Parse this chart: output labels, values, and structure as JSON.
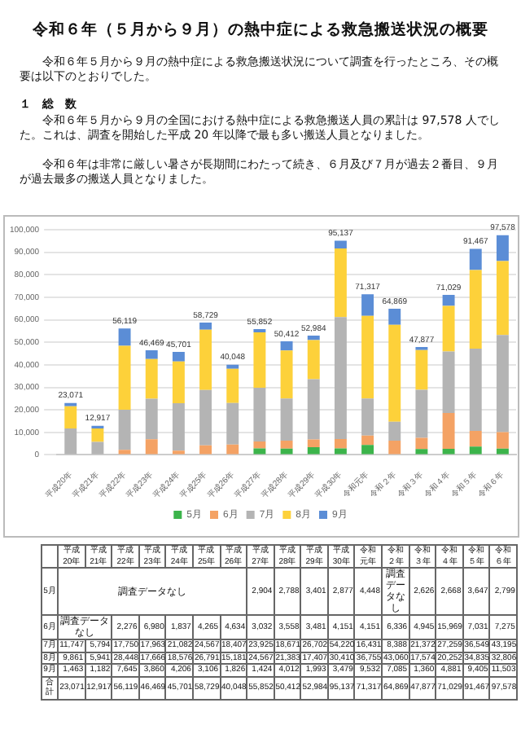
{
  "chart_data": {
    "type": "bar",
    "title": "令和６年（５月から９月）の熱中症による救急搬送状況の概要",
    "annotations": [
      "令和６年５月から９月の熱中症による救急搬送状況について調査を行ったところ、その概要は以下のとおりでした。",
      "１　総　数",
      "令和６年５月から９月の全国における熱中症による救急搬送人員の累計は 97,578 人でした。これは、調査を開始した平成 20 年以降で最も多い搬送人員となりました。",
      "令和６年は非常に厳しい暑さが長期間にわたって続き、６月及び７月が過去２番目、９月が過去最多の搬送人員となりました。",
      "調査データなし",
      "合計"
    ],
    "categories": [
      "平成20年",
      "平成21年",
      "平成22年",
      "平成23年",
      "平成24年",
      "平成25年",
      "平成26年",
      "平成27年",
      "平成28年",
      "平成29年",
      "平成30年",
      "令和元年",
      "令和２年",
      "令和３年",
      "令和４年",
      "令和５年",
      "令和６年"
    ],
    "stacked": true,
    "series": [
      {
        "name": "5月",
        "color": "#3cb44b",
        "values": [
          null,
          null,
          null,
          null,
          null,
          null,
          null,
          2904,
          2788,
          3401,
          2877,
          4448,
          null,
          2626,
          2668,
          3647,
          2799
        ],
        "value_labels": [
          null,
          null,
          null,
          null,
          null,
          null,
          null,
          "2,904",
          "2,788",
          "3,401",
          "2,877",
          "4,448",
          null,
          "2,626",
          "2,668",
          "3,647",
          "2,799"
        ]
      },
      {
        "name": "6月",
        "color": "#f4a264",
        "values": [
          null,
          null,
          2276,
          6980,
          1837,
          4265,
          4634,
          3032,
          3558,
          3481,
          4151,
          4151,
          6336,
          4945,
          15969,
          7031,
          7275
        ],
        "value_labels": [
          null,
          null,
          "2,276",
          "6,980",
          "1,837",
          "4,265",
          "4,634",
          "3,032",
          "3,558",
          "3,481",
          "4,151",
          "4,151",
          "6,336",
          "4,945",
          "15,969",
          "7,031",
          "7,275"
        ]
      },
      {
        "name": "7月",
        "color": "#b4b4b4",
        "values": [
          11747,
          5794,
          17750,
          17963,
          21082,
          24567,
          18407,
          23925,
          18671,
          26702,
          54220,
          16431,
          8388,
          21372,
          27259,
          36549,
          43195
        ],
        "value_labels": [
          "11,747",
          "5,794",
          "17,750",
          "17,963",
          "21,082",
          "24,567",
          "18,407",
          "23,925",
          "18,671",
          "26,702",
          "54,220",
          "16,431",
          "8,388",
          "21,372",
          "27,259",
          "36,549",
          "43,195"
        ]
      },
      {
        "name": "8月",
        "color": "#fdd13a",
        "values": [
          9861,
          5941,
          28448,
          17666,
          18576,
          26791,
          15181,
          24567,
          21383,
          17407,
          30410,
          36755,
          43060,
          17574,
          20252,
          34835,
          32806
        ],
        "value_labels": [
          "9,861",
          "5,941",
          "28,448",
          "17,666",
          "18,576",
          "26,791",
          "15,181",
          "24,567",
          "21,383",
          "17,407",
          "30,410",
          "36,755",
          "43,060",
          "17,574",
          "20,252",
          "34,835",
          "32,806"
        ]
      },
      {
        "name": "9月",
        "color": "#5b8dd6",
        "values": [
          1463,
          1182,
          7645,
          3860,
          4206,
          3106,
          1826,
          1424,
          4012,
          1993,
          3479,
          9532,
          7085,
          1360,
          4881,
          9405,
          11503
        ],
        "value_labels": [
          "1,463",
          "1,182",
          "7,645",
          "3,860",
          "4,206",
          "3,106",
          "1,826",
          "1,424",
          "4,012",
          "1,993",
          "3,479",
          "9,532",
          "7,085",
          "1,360",
          "4,881",
          "9,405",
          "11,503"
        ]
      }
    ],
    "totals": [
      "23,071",
      "12,917",
      "56,119",
      "46,469",
      "45,701",
      "58,729",
      "40,048",
      "55,852",
      "50,412",
      "52,984",
      "95,137",
      "71,317",
      "64,869",
      "47,877",
      "71,029",
      "91,467",
      "97,578"
    ],
    "ylim": [
      0,
      100000
    ],
    "yticks": [
      0,
      {
        "value": 10000,
        "label": "10,000"
      },
      {
        "value": 20000,
        "label": "20,000"
      },
      {
        "value": 30000,
        "label": "30,000"
      },
      {
        "value": 40000,
        "label": "40,000"
      },
      {
        "value": 50000,
        "label": "50,000"
      },
      {
        "value": 60000,
        "label": "60,000"
      },
      {
        "value": 70000,
        "label": "70,000"
      },
      {
        "value": 80000,
        "label": "80,000"
      },
      {
        "value": 90000,
        "label": "90,000"
      },
      {
        "value": 100000,
        "label": "100,000"
      }
    ],
    "grid": "y",
    "legend": "bottom"
  }
}
